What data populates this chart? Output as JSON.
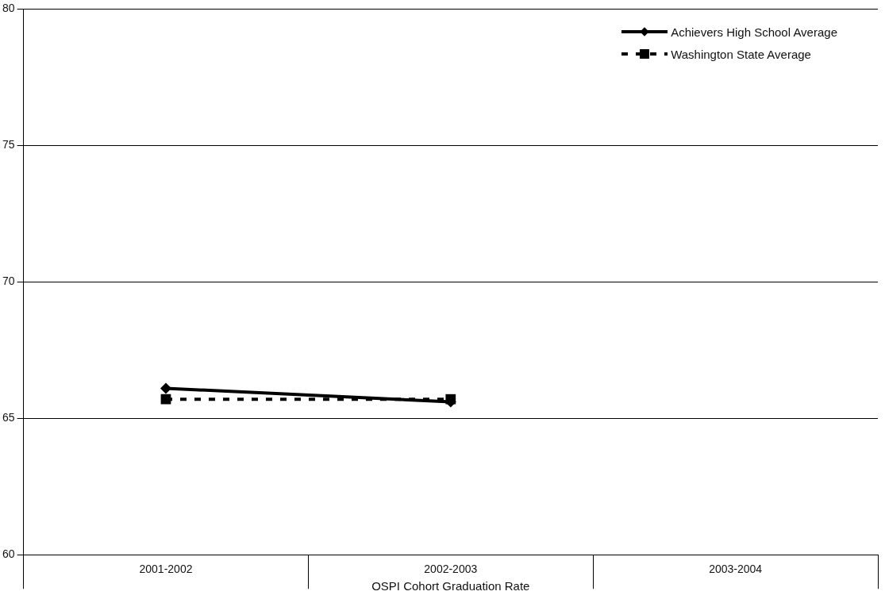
{
  "chart_data": {
    "type": "line",
    "xlabel": "OSPI Cohort Graduation Rate",
    "categories": [
      "2001-2002",
      "2002-2003",
      "2003-2004"
    ],
    "series": [
      {
        "name": "Achievers High School Average",
        "color": "#000000",
        "values": [
          66.1,
          65.6,
          null
        ],
        "marker": "diamond",
        "line_style": "solid"
      },
      {
        "name": "Washington State Average",
        "color": "#000000",
        "values": [
          65.7,
          65.7,
          null
        ],
        "marker": "square",
        "line_style": "dashed"
      }
    ],
    "ylim": [
      60,
      80
    ],
    "yticks": [
      60,
      65,
      70,
      75,
      80
    ],
    "grid": "y",
    "legend": "top right"
  }
}
